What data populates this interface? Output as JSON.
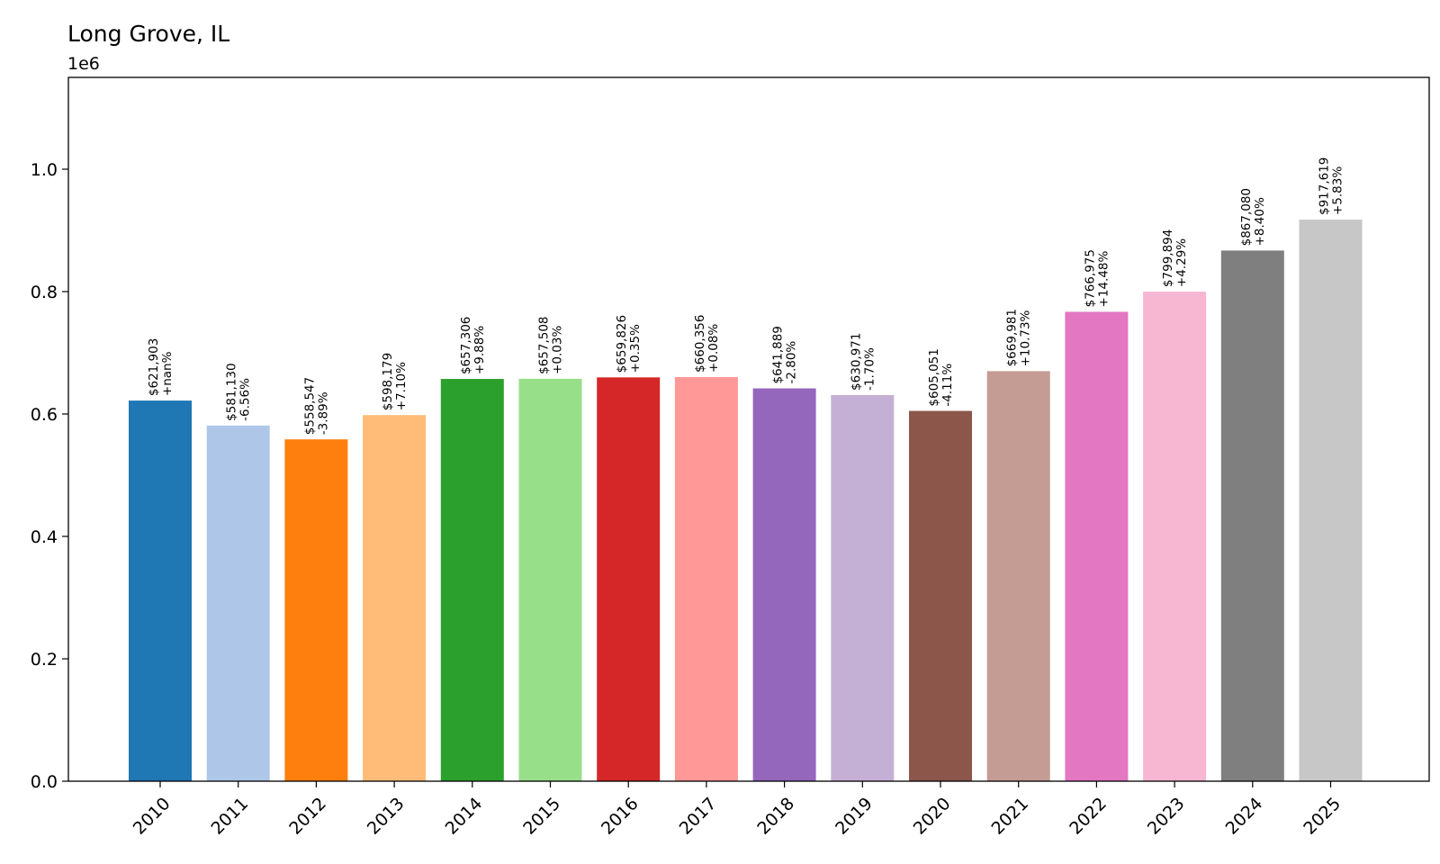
{
  "chart_data": {
    "type": "bar",
    "title": "Long Grove, IL",
    "y_offset_label": "1e6",
    "xlabel": "",
    "ylabel": "",
    "categories": [
      "2010",
      "2011",
      "2012",
      "2013",
      "2014",
      "2015",
      "2016",
      "2017",
      "2018",
      "2019",
      "2020",
      "2021",
      "2022",
      "2023",
      "2024",
      "2025"
    ],
    "values": [
      621903,
      581130,
      558547,
      598179,
      657306,
      657508,
      659826,
      660356,
      641889,
      630971,
      605051,
      669981,
      766975,
      799894,
      867080,
      917619
    ],
    "value_labels": [
      "$621,903",
      "$581,130",
      "$558,547",
      "$598,179",
      "$657,306",
      "$657,508",
      "$659,826",
      "$660,356",
      "$641,889",
      "$630,971",
      "$605,051",
      "$669,981",
      "$766,975",
      "$799,894",
      "$867,080",
      "$917,619"
    ],
    "change_labels": [
      "+nan%",
      "-6.56%",
      "-3.89%",
      "+7.10%",
      "+9.88%",
      "+0.03%",
      "+0.35%",
      "+0.08%",
      "-2.80%",
      "-1.70%",
      "-4.11%",
      "+10.73%",
      "+14.48%",
      "+4.29%",
      "+8.40%",
      "+5.83%"
    ],
    "colors": [
      "#1f77b4",
      "#aec7e8",
      "#ff7f0e",
      "#ffbb78",
      "#2ca02c",
      "#98df8a",
      "#d62728",
      "#ff9896",
      "#9467bd",
      "#c5b0d5",
      "#8c564b",
      "#c49c94",
      "#e377c2",
      "#f7b6d2",
      "#7f7f7f",
      "#c7c7c7"
    ],
    "ylim": [
      0,
      1150000
    ],
    "yticks": [
      0,
      200000,
      400000,
      600000,
      800000,
      1000000
    ],
    "ytick_labels": [
      "0.0",
      "0.2",
      "0.4",
      "0.6",
      "0.8",
      "1.0"
    ],
    "grid": false,
    "legend": "none"
  }
}
